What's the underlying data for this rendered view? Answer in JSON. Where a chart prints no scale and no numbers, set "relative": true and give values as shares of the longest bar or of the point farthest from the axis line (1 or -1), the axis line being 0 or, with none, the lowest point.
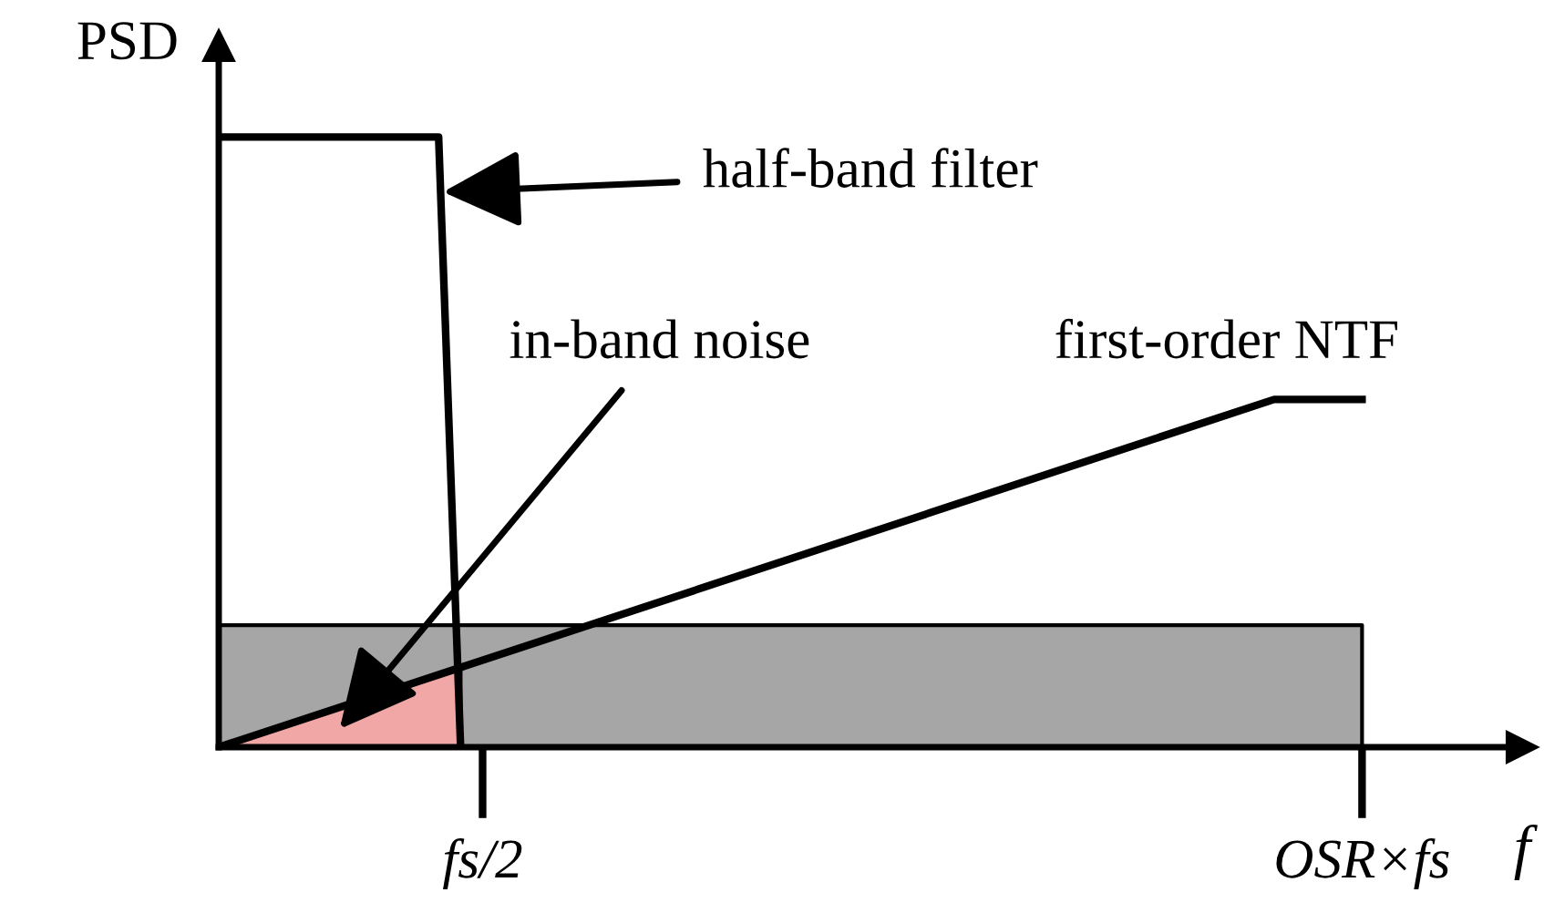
{
  "chart_data": {
    "type": "line",
    "relative": true,
    "xlabel": "f",
    "ylabel": "PSD",
    "categories": [
      null,
      null,
      null,
      null,
      null,
      null,
      null,
      null,
      null,
      null,
      null,
      null,
      "fs/2",
      null,
      null,
      null,
      null,
      null,
      null,
      null,
      null,
      null,
      null,
      null,
      null,
      null,
      null,
      null,
      null,
      null,
      null,
      null,
      null,
      null,
      null,
      null,
      null,
      null,
      null,
      null,
      null,
      null,
      null,
      null,
      null,
      null,
      null,
      null,
      null,
      null,
      null,
      null,
      "OSR×fs"
    ],
    "series": [
      {
        "type": "area",
        "color": "#a6a6a6",
        "values": [
          0.2,
          null,
          null,
          null,
          null,
          null,
          null,
          null,
          null,
          null,
          null,
          null,
          null,
          null,
          null,
          null,
          null,
          null,
          null,
          null,
          null,
          null,
          null,
          null,
          null,
          null,
          null,
          null,
          null,
          null,
          null,
          null,
          null,
          null,
          null,
          null,
          null,
          null,
          null,
          null,
          null,
          null,
          null,
          null,
          null,
          null,
          null,
          null,
          null,
          null,
          null,
          null,
          0.2
        ]
      },
      {
        "type": "area",
        "name": "in-band noise",
        "color": "#f2a7a7",
        "values": [
          0,
          null,
          null,
          null,
          null,
          null,
          null,
          null,
          null,
          null,
          null,
          0.13,
          null,
          null,
          null,
          null,
          null,
          null,
          null,
          null,
          null,
          null,
          null,
          null,
          null,
          null,
          null,
          null,
          null,
          null,
          null,
          null,
          null,
          null,
          null,
          null,
          null,
          null,
          null,
          null,
          null,
          null,
          null,
          null,
          null,
          null,
          null,
          null,
          null,
          null,
          null,
          null,
          null
        ]
      },
      {
        "name": "half-band filter",
        "color": "#000000",
        "values": [
          1,
          null,
          null,
          null,
          null,
          null,
          null,
          null,
          null,
          null,
          1,
          0,
          null,
          null,
          null,
          null,
          null,
          null,
          null,
          null,
          null,
          null,
          null,
          null,
          null,
          null,
          null,
          null,
          null,
          null,
          null,
          null,
          null,
          null,
          null,
          null,
          null,
          null,
          null,
          null,
          null,
          null,
          null,
          null,
          null,
          null,
          null,
          null,
          null,
          null,
          null,
          null,
          null
        ]
      },
      {
        "name": "first-order NTF",
        "color": "#000000",
        "values": [
          0,
          null,
          null,
          null,
          null,
          null,
          null,
          null,
          null,
          null,
          null,
          null,
          null,
          null,
          null,
          null,
          null,
          null,
          null,
          null,
          null,
          null,
          null,
          null,
          null,
          null,
          null,
          null,
          null,
          null,
          null,
          null,
          null,
          null,
          null,
          null,
          null,
          null,
          null,
          null,
          null,
          null,
          null,
          null,
          null,
          null,
          null,
          null,
          0.57,
          null,
          null,
          null,
          0.57
        ]
      }
    ]
  }
}
